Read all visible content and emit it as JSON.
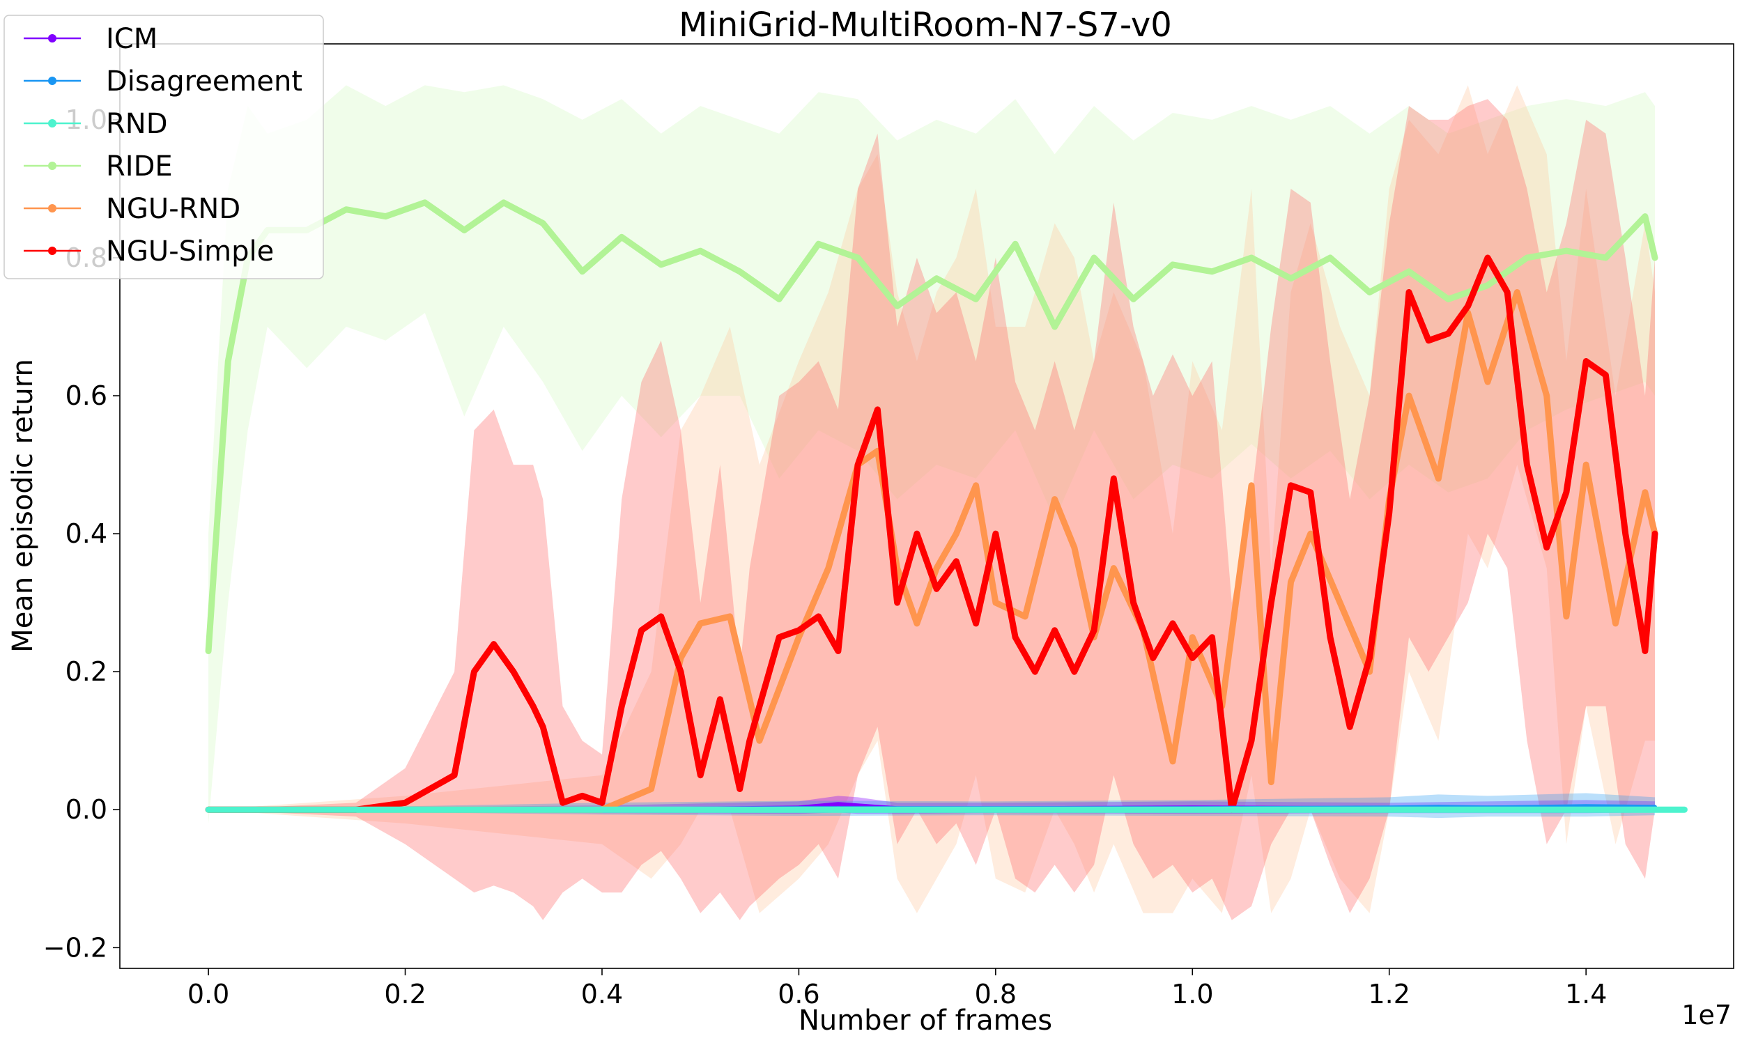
{
  "chart_data": {
    "type": "line",
    "title": "MiniGrid-MultiRoom-N7-S7-v0",
    "xlabel": "Number of frames",
    "ylabel": "Mean episodic return",
    "x_offset_label": "1e7",
    "xlim": [
      -0.09,
      1.55
    ],
    "ylim": [
      -0.23,
      1.11
    ],
    "x_ticks": [
      0.0,
      0.2,
      0.4,
      0.6,
      0.8,
      1.0,
      1.2,
      1.4
    ],
    "x_tick_labels": [
      "0.0",
      "0.2",
      "0.4",
      "0.6",
      "0.8",
      "1.0",
      "1.2",
      "1.4"
    ],
    "y_ticks": [
      -0.2,
      0.0,
      0.2,
      0.4,
      0.6,
      0.8,
      1.0
    ],
    "y_tick_labels": [
      "−0.2",
      "0.0",
      "0.2",
      "0.4",
      "0.6",
      "0.8",
      "1.0"
    ],
    "grid": false,
    "legend_position": "top-left",
    "series": [
      {
        "name": "ICM",
        "color": "#8000ff",
        "band_color": "#8000ff",
        "x": [
          0.0,
          0.2,
          0.4,
          0.6,
          0.64,
          0.66,
          0.7,
          0.8,
          1.0,
          1.2,
          1.4,
          1.47
        ],
        "y": [
          0.0,
          0.0,
          0.0,
          0.003,
          0.008,
          0.006,
          0.002,
          0.002,
          0.003,
          0.002,
          0.004,
          0.003
        ],
        "lower": [
          0.0,
          -0.003,
          -0.005,
          -0.006,
          -0.004,
          -0.006,
          -0.006,
          -0.005,
          -0.006,
          -0.005,
          -0.005,
          -0.004
        ],
        "upper": [
          0.0,
          0.004,
          0.006,
          0.012,
          0.02,
          0.018,
          0.01,
          0.01,
          0.012,
          0.01,
          0.014,
          0.012
        ]
      },
      {
        "name": "Disagreement",
        "color": "#1996f3",
        "band_color": "#1996f3",
        "x": [
          0.0,
          0.2,
          0.4,
          0.6,
          0.8,
          1.0,
          1.2,
          1.25,
          1.3,
          1.4,
          1.47
        ],
        "y": [
          0.0,
          0.0,
          0.001,
          0.002,
          0.002,
          0.002,
          0.003,
          0.004,
          0.003,
          0.005,
          0.004
        ],
        "lower": [
          0.0,
          -0.004,
          -0.007,
          -0.009,
          -0.008,
          -0.009,
          -0.01,
          -0.012,
          -0.01,
          -0.01,
          -0.008
        ],
        "upper": [
          0.0,
          0.005,
          0.01,
          0.013,
          0.012,
          0.014,
          0.018,
          0.022,
          0.02,
          0.024,
          0.018
        ]
      },
      {
        "name": "RND",
        "color": "#4df3ce",
        "band_color": "#4df3ce",
        "x": [
          0.0,
          0.5,
          1.0,
          1.5
        ],
        "y": [
          0.0,
          0.0,
          0.0,
          0.0
        ],
        "lower": [
          0.0,
          -0.002,
          -0.002,
          -0.002
        ],
        "upper": [
          0.0,
          0.002,
          0.002,
          0.002
        ]
      },
      {
        "name": "RIDE",
        "color": "#b2f396",
        "band_color": "#b2f396",
        "x": [
          0.0,
          0.02,
          0.04,
          0.06,
          0.1,
          0.14,
          0.18,
          0.22,
          0.26,
          0.3,
          0.34,
          0.38,
          0.42,
          0.46,
          0.5,
          0.54,
          0.58,
          0.62,
          0.66,
          0.7,
          0.74,
          0.78,
          0.82,
          0.86,
          0.9,
          0.94,
          0.98,
          1.02,
          1.06,
          1.1,
          1.14,
          1.18,
          1.22,
          1.26,
          1.3,
          1.34,
          1.38,
          1.42,
          1.46,
          1.47
        ],
        "y": [
          0.23,
          0.65,
          0.8,
          0.84,
          0.84,
          0.87,
          0.86,
          0.88,
          0.84,
          0.88,
          0.85,
          0.78,
          0.83,
          0.79,
          0.81,
          0.78,
          0.74,
          0.82,
          0.8,
          0.73,
          0.77,
          0.74,
          0.82,
          0.7,
          0.8,
          0.74,
          0.79,
          0.78,
          0.8,
          0.77,
          0.8,
          0.75,
          0.78,
          0.74,
          0.76,
          0.8,
          0.81,
          0.8,
          0.86,
          0.8
        ],
        "lower": [
          -0.02,
          0.3,
          0.55,
          0.7,
          0.64,
          0.7,
          0.68,
          0.72,
          0.57,
          0.7,
          0.62,
          0.52,
          0.6,
          0.54,
          0.6,
          0.6,
          0.48,
          0.55,
          0.52,
          0.45,
          0.5,
          0.48,
          0.55,
          0.42,
          0.55,
          0.45,
          0.5,
          0.48,
          0.53,
          0.48,
          0.52,
          0.45,
          0.5,
          0.46,
          0.48,
          0.55,
          0.58,
          0.6,
          0.62,
          0.6
        ],
        "upper": [
          0.4,
          0.9,
          1.02,
          0.98,
          1.0,
          1.05,
          1.02,
          1.05,
          1.04,
          1.05,
          1.03,
          1.0,
          1.03,
          0.98,
          1.02,
          1.0,
          0.98,
          1.04,
          1.03,
          0.97,
          1.0,
          0.98,
          1.03,
          0.95,
          1.02,
          0.97,
          1.01,
          1.0,
          1.02,
          1.0,
          1.02,
          0.98,
          1.02,
          0.98,
          1.0,
          1.02,
          1.03,
          1.02,
          1.04,
          1.02
        ]
      },
      {
        "name": "NGU-RND",
        "color": "#ff954e",
        "band_color": "#ffc8a0",
        "x": [
          0.0,
          0.2,
          0.4,
          0.45,
          0.48,
          0.5,
          0.53,
          0.56,
          0.6,
          0.63,
          0.66,
          0.68,
          0.7,
          0.72,
          0.74,
          0.76,
          0.78,
          0.8,
          0.83,
          0.86,
          0.88,
          0.9,
          0.92,
          0.95,
          0.98,
          1.0,
          1.03,
          1.06,
          1.08,
          1.1,
          1.12,
          1.15,
          1.18,
          1.2,
          1.22,
          1.25,
          1.28,
          1.3,
          1.33,
          1.36,
          1.38,
          1.4,
          1.43,
          1.46,
          1.47
        ],
        "y": [
          0.0,
          0.0,
          0.0,
          0.03,
          0.22,
          0.27,
          0.28,
          0.1,
          0.25,
          0.35,
          0.5,
          0.52,
          0.35,
          0.27,
          0.35,
          0.4,
          0.47,
          0.3,
          0.28,
          0.45,
          0.38,
          0.25,
          0.35,
          0.26,
          0.07,
          0.25,
          0.15,
          0.47,
          0.04,
          0.33,
          0.4,
          0.3,
          0.2,
          0.45,
          0.6,
          0.48,
          0.72,
          0.62,
          0.75,
          0.6,
          0.28,
          0.5,
          0.27,
          0.46,
          0.4
        ],
        "lower": [
          0.0,
          -0.02,
          -0.05,
          -0.1,
          -0.05,
          0.0,
          0.0,
          -0.15,
          -0.1,
          -0.05,
          0.05,
          0.1,
          -0.1,
          -0.15,
          -0.1,
          -0.05,
          0.05,
          -0.1,
          -0.12,
          0.0,
          -0.05,
          -0.12,
          -0.05,
          -0.15,
          -0.15,
          -0.1,
          -0.15,
          0.05,
          -0.15,
          -0.1,
          0.0,
          -0.1,
          -0.15,
          0.0,
          0.2,
          0.1,
          0.4,
          0.35,
          0.5,
          0.35,
          -0.05,
          0.15,
          -0.05,
          0.1,
          0.1
        ],
        "upper": [
          0.0,
          0.02,
          0.05,
          0.2,
          0.55,
          0.6,
          0.7,
          0.5,
          0.65,
          0.75,
          0.9,
          0.95,
          0.75,
          0.65,
          0.75,
          0.8,
          0.9,
          0.7,
          0.7,
          0.85,
          0.8,
          0.65,
          0.75,
          0.65,
          0.4,
          0.65,
          0.55,
          0.9,
          0.35,
          0.75,
          0.85,
          0.7,
          0.6,
          0.9,
          1.0,
          0.95,
          1.05,
          0.95,
          1.05,
          0.95,
          0.65,
          0.9,
          0.6,
          0.85,
          0.75
        ]
      },
      {
        "name": "NGU-Simple",
        "color": "#ff0000",
        "band_color": "#ff6b6b",
        "x": [
          0.0,
          0.15,
          0.2,
          0.25,
          0.27,
          0.29,
          0.31,
          0.33,
          0.34,
          0.36,
          0.38,
          0.4,
          0.42,
          0.44,
          0.46,
          0.48,
          0.5,
          0.52,
          0.54,
          0.55,
          0.58,
          0.6,
          0.62,
          0.64,
          0.66,
          0.68,
          0.7,
          0.72,
          0.74,
          0.76,
          0.78,
          0.8,
          0.82,
          0.84,
          0.86,
          0.88,
          0.9,
          0.92,
          0.94,
          0.96,
          0.98,
          1.0,
          1.02,
          1.04,
          1.06,
          1.08,
          1.1,
          1.12,
          1.14,
          1.16,
          1.18,
          1.2,
          1.22,
          1.24,
          1.26,
          1.28,
          1.3,
          1.32,
          1.34,
          1.36,
          1.38,
          1.4,
          1.42,
          1.44,
          1.46,
          1.47
        ],
        "y": [
          0.0,
          0.0,
          0.01,
          0.05,
          0.2,
          0.24,
          0.2,
          0.15,
          0.12,
          0.01,
          0.02,
          0.01,
          0.15,
          0.26,
          0.28,
          0.2,
          0.05,
          0.16,
          0.03,
          0.1,
          0.25,
          0.26,
          0.28,
          0.23,
          0.5,
          0.58,
          0.3,
          0.4,
          0.32,
          0.36,
          0.27,
          0.4,
          0.25,
          0.2,
          0.26,
          0.2,
          0.26,
          0.48,
          0.3,
          0.22,
          0.27,
          0.22,
          0.25,
          0.0,
          0.1,
          0.3,
          0.47,
          0.46,
          0.25,
          0.12,
          0.22,
          0.43,
          0.75,
          0.68,
          0.69,
          0.73,
          0.8,
          0.75,
          0.5,
          0.38,
          0.46,
          0.65,
          0.63,
          0.4,
          0.23,
          0.4
        ],
        "lower": [
          0.0,
          -0.01,
          -0.05,
          -0.1,
          -0.12,
          -0.11,
          -0.12,
          -0.14,
          -0.16,
          -0.12,
          -0.1,
          -0.12,
          -0.12,
          -0.08,
          -0.06,
          -0.1,
          -0.15,
          -0.12,
          -0.16,
          -0.14,
          -0.1,
          -0.08,
          -0.05,
          -0.1,
          0.05,
          0.12,
          -0.05,
          0.0,
          -0.05,
          -0.02,
          -0.08,
          0.0,
          -0.1,
          -0.12,
          -0.08,
          -0.12,
          -0.08,
          0.05,
          -0.05,
          -0.1,
          -0.08,
          -0.12,
          -0.1,
          -0.16,
          -0.14,
          -0.05,
          0.0,
          0.0,
          -0.08,
          -0.15,
          -0.1,
          0.0,
          0.25,
          0.2,
          0.25,
          0.3,
          0.4,
          0.35,
          0.1,
          -0.05,
          0.0,
          0.15,
          0.15,
          -0.05,
          -0.1,
          0.0
        ],
        "upper": [
          0.0,
          0.01,
          0.06,
          0.2,
          0.55,
          0.58,
          0.5,
          0.5,
          0.45,
          0.15,
          0.1,
          0.08,
          0.45,
          0.62,
          0.68,
          0.55,
          0.3,
          0.5,
          0.2,
          0.35,
          0.6,
          0.62,
          0.65,
          0.58,
          0.9,
          0.98,
          0.7,
          0.8,
          0.72,
          0.75,
          0.65,
          0.8,
          0.62,
          0.55,
          0.65,
          0.55,
          0.65,
          0.88,
          0.7,
          0.6,
          0.66,
          0.6,
          0.65,
          0.3,
          0.45,
          0.7,
          0.9,
          0.88,
          0.65,
          0.45,
          0.6,
          0.85,
          1.02,
          1.0,
          1.0,
          1.02,
          1.03,
          1.0,
          0.9,
          0.75,
          0.85,
          1.0,
          0.98,
          0.8,
          0.6,
          0.8
        ]
      }
    ]
  }
}
